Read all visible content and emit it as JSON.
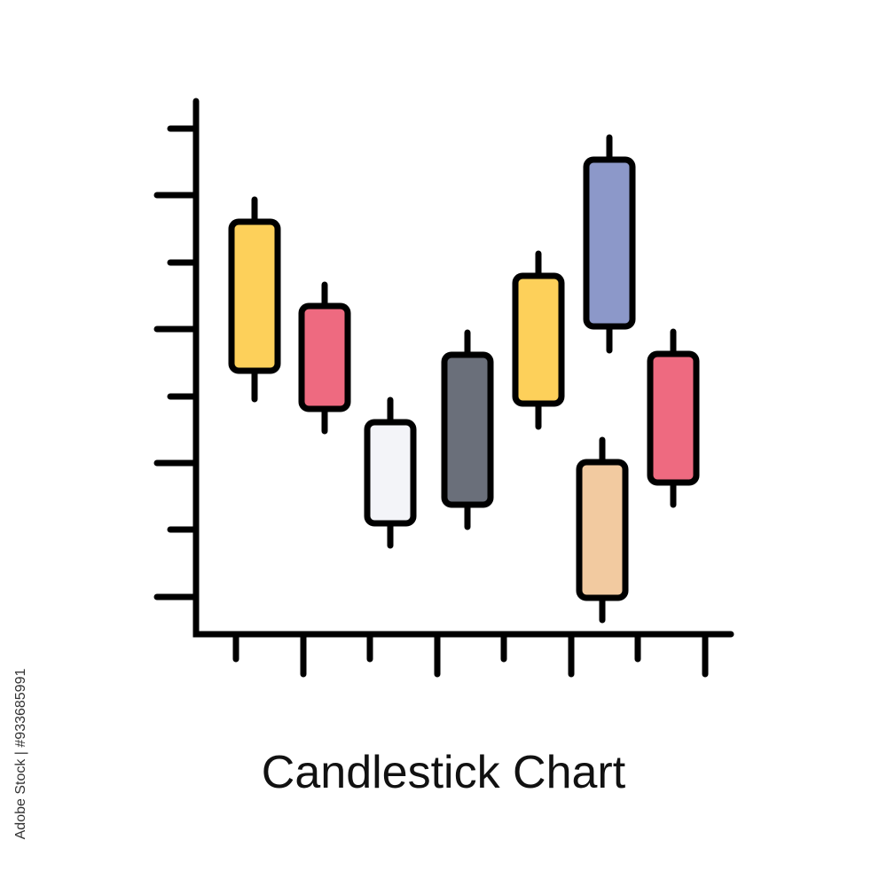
{
  "caption": "Candlestick Chart",
  "watermark": "Adobe Stock | #933685991"
}
